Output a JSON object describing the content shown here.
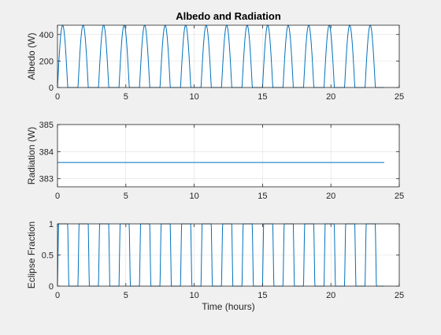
{
  "figure": {
    "background": "#f0f0f0",
    "axes_background": "#ffffff",
    "line_color": "#0072bd"
  },
  "chart_data": [
    {
      "type": "line",
      "title": "Albedo and Radiation",
      "xlabel": "",
      "ylabel": "Albedo (W)",
      "xlim": [
        0,
        25
      ],
      "ylim": [
        0,
        470
      ],
      "xticks": [
        0,
        5,
        10,
        15,
        20,
        25
      ],
      "yticks": [
        0,
        200,
        400
      ],
      "grid": true,
      "series": [
        {
          "pattern": "periodic half-sine pulses",
          "period_hours": 1.5,
          "peak": 470,
          "x_range": [
            0,
            23.9
          ],
          "pulse_count": 16
        }
      ]
    },
    {
      "type": "line",
      "title": "",
      "xlabel": "",
      "ylabel": "Radiation (W)",
      "xlim": [
        0,
        25
      ],
      "ylim": [
        382.7,
        385
      ],
      "xticks": [
        0,
        5,
        10,
        15,
        20,
        25
      ],
      "yticks": [
        383,
        384,
        385
      ],
      "grid": true,
      "series": [
        {
          "x": [
            0,
            23.9
          ],
          "y": [
            383.6,
            383.6
          ]
        }
      ]
    },
    {
      "type": "line",
      "title": "",
      "xlabel": "Time (hours)",
      "ylabel": "Eclipse Fraction",
      "xlim": [
        0,
        25
      ],
      "ylim": [
        0,
        1
      ],
      "xticks": [
        0,
        5,
        10,
        15,
        20,
        25
      ],
      "yticks": [
        0,
        0.5,
        1
      ],
      "grid": true,
      "series": [
        {
          "pattern": "periodic square wave",
          "period_hours": 1.5,
          "high": 1,
          "low": 0,
          "x_range": [
            0,
            23.9
          ],
          "pulse_count": 16
        }
      ]
    }
  ]
}
